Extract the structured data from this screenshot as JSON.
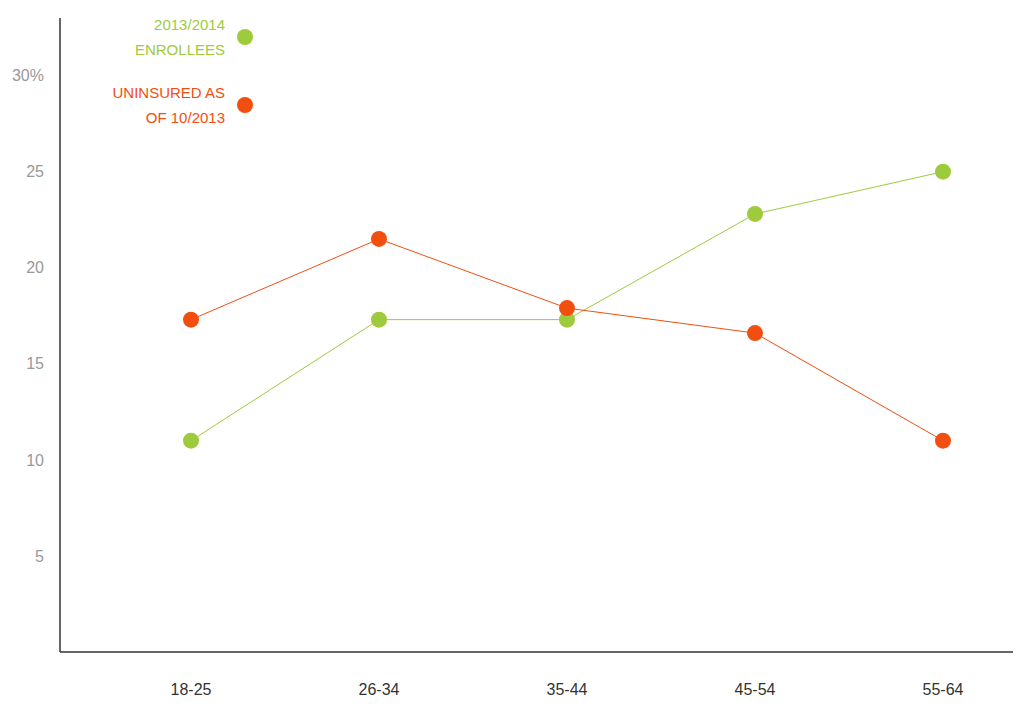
{
  "chart_data": {
    "type": "line",
    "categories": [
      "18-25",
      "26-34",
      "35-44",
      "45-54",
      "55-64"
    ],
    "series": [
      {
        "name": "2013/2014 ENROLLEES",
        "color": "#9dcb3c",
        "values": [
          11.0,
          17.3,
          17.3,
          22.8,
          25.0
        ]
      },
      {
        "name": "UNINSURED AS OF 10/2013",
        "color": "#f24e10",
        "values": [
          17.3,
          21.5,
          17.9,
          16.6,
          11.0
        ]
      }
    ],
    "ylim": [
      0,
      33
    ],
    "yticks": [
      5,
      10,
      15,
      20,
      25,
      {
        "value": 30,
        "label": "30%"
      }
    ],
    "grid": false,
    "legend": "top-left",
    "marker": "circle"
  }
}
